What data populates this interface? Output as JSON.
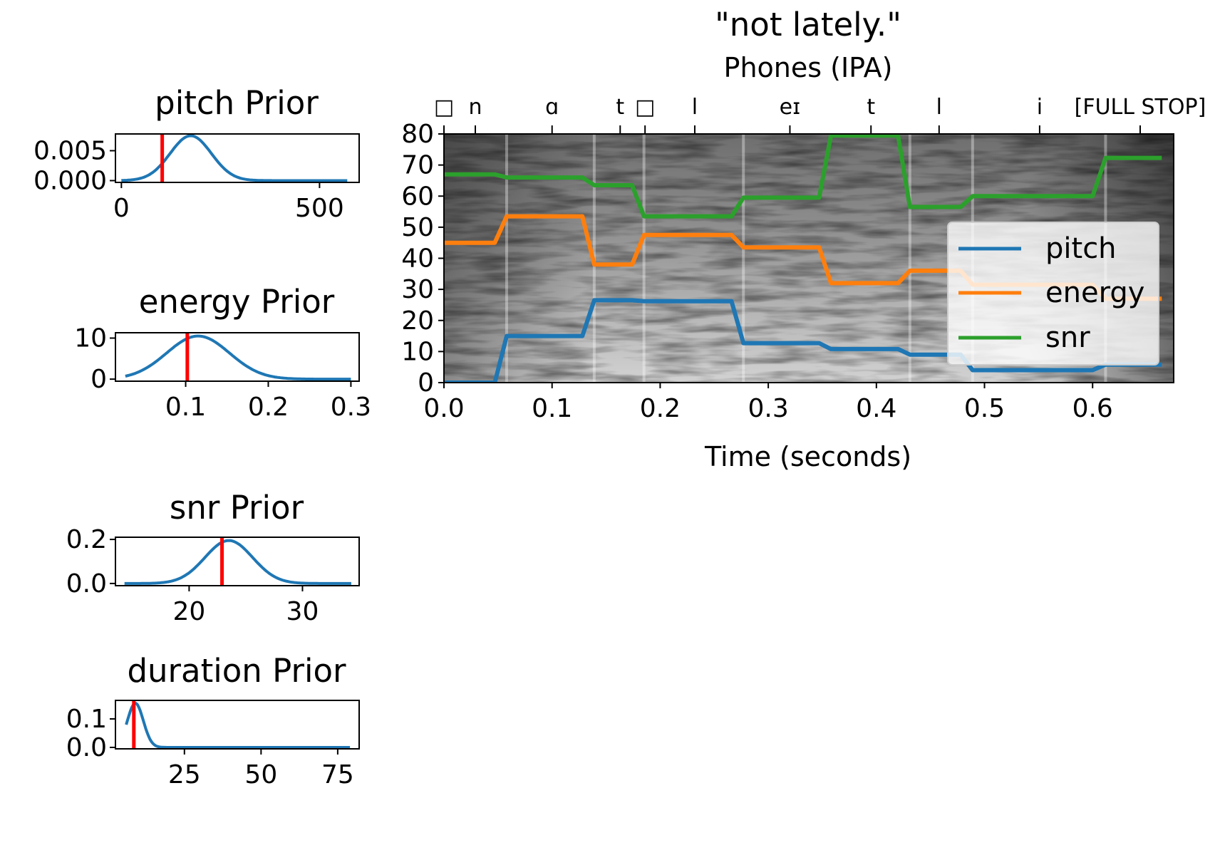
{
  "main": {
    "title": "\"not lately.\"",
    "xlabel": "Time (seconds)",
    "phones_label": "Phones (IPA)",
    "legend": [
      "pitch",
      "energy",
      "snr"
    ]
  },
  "priors": [
    {
      "title": "pitch Prior"
    },
    {
      "title": "energy Prior"
    },
    {
      "title": "snr Prior"
    },
    {
      "title": "duration Prior"
    }
  ],
  "colors": {
    "pitch": "#1f77b4",
    "energy": "#ff7f0e",
    "snr": "#2ca02c",
    "marker": "#ff0000"
  },
  "chart_data": [
    {
      "type": "line",
      "title": "\"not lately.\"",
      "xlabel": "Time (seconds)",
      "x2label": "Phones (IPA)",
      "background": "spectrogram (grayscale)",
      "xlim": [
        0,
        0.675
      ],
      "ylim": [
        0,
        80
      ],
      "xticks": [
        "0.0",
        "0.1",
        "0.2",
        "0.3",
        "0.4",
        "0.5",
        "0.6"
      ],
      "yticks": [
        "0",
        "10",
        "20",
        "30",
        "40",
        "50",
        "60",
        "70",
        "80"
      ],
      "phones": [
        {
          "label": "□",
          "time": 0.0
        },
        {
          "label": "n",
          "time": 0.029
        },
        {
          "label": "ɑ",
          "time": 0.1
        },
        {
          "label": "t",
          "time": 0.163
        },
        {
          "label": "□",
          "time": 0.186
        },
        {
          "label": "l",
          "time": 0.232
        },
        {
          "label": "eɪ",
          "time": 0.32
        },
        {
          "label": "t",
          "time": 0.395
        },
        {
          "label": "l",
          "time": 0.458
        },
        {
          "label": "i",
          "time": 0.551
        },
        {
          "label": "[FULL STOP]",
          "time": 0.644
        }
      ],
      "phone_boundaries": [
        0.058,
        0.139,
        0.185,
        0.277,
        0.431,
        0.489,
        0.612
      ],
      "legend_position": "center-right",
      "series": [
        {
          "name": "pitch",
          "points": [
            [
              0,
              0
            ],
            [
              0.047,
              0
            ],
            [
              0.058,
              15
            ],
            [
              0.128,
              15
            ],
            [
              0.139,
              26.5
            ],
            [
              0.174,
              26.5
            ],
            [
              0.185,
              26.2
            ],
            [
              0.266,
              26.2
            ],
            [
              0.277,
              12.7
            ],
            [
              0.347,
              12.7
            ],
            [
              0.358,
              10.8
            ],
            [
              0.42,
              10.8
            ],
            [
              0.431,
              9
            ],
            [
              0.478,
              9
            ],
            [
              0.489,
              4
            ],
            [
              0.6,
              4
            ],
            [
              0.612,
              5.8
            ],
            [
              0.664,
              5.8
            ]
          ]
        },
        {
          "name": "energy",
          "points": [
            [
              0,
              45
            ],
            [
              0.047,
              45
            ],
            [
              0.058,
              53.5
            ],
            [
              0.128,
              53.5
            ],
            [
              0.139,
              38
            ],
            [
              0.174,
              38
            ],
            [
              0.185,
              47.5
            ],
            [
              0.266,
              47.5
            ],
            [
              0.277,
              43.5
            ],
            [
              0.347,
              43.5
            ],
            [
              0.358,
              32
            ],
            [
              0.42,
              32
            ],
            [
              0.431,
              36
            ],
            [
              0.478,
              36
            ],
            [
              0.489,
              31.5
            ],
            [
              0.6,
              31.5
            ],
            [
              0.612,
              27
            ],
            [
              0.664,
              27
            ]
          ]
        },
        {
          "name": "snr",
          "points": [
            [
              0,
              67
            ],
            [
              0.047,
              67
            ],
            [
              0.058,
              66
            ],
            [
              0.128,
              66
            ],
            [
              0.139,
              63.5
            ],
            [
              0.174,
              63.5
            ],
            [
              0.185,
              53.5
            ],
            [
              0.266,
              53.5
            ],
            [
              0.277,
              59.5
            ],
            [
              0.347,
              59.5
            ],
            [
              0.358,
              79.5
            ],
            [
              0.42,
              79.5
            ],
            [
              0.431,
              56.5
            ],
            [
              0.478,
              56.5
            ],
            [
              0.489,
              60
            ],
            [
              0.6,
              60
            ],
            [
              0.612,
              72.3
            ],
            [
              0.664,
              72.3
            ]
          ]
        }
      ]
    },
    {
      "type": "line",
      "title": "pitch Prior",
      "xlim": [
        -15,
        600
      ],
      "ylim": [
        -0.0003,
        0.0078
      ],
      "xticks": [
        0,
        500
      ],
      "yticks": [
        0.0,
        0.005
      ],
      "xtick_labels": [
        "0",
        "500"
      ],
      "ytick_labels": [
        "0.000",
        "0.005"
      ],
      "distribution": {
        "kind": "gaussian",
        "mean": 175,
        "std": 52,
        "peak": 0.0075,
        "x_from": 0,
        "x_to": 570
      },
      "marker": 103
    },
    {
      "type": "line",
      "title": "energy Prior",
      "xlim": [
        0.015,
        0.31
      ],
      "ylim": [
        -0.5,
        11.3
      ],
      "xticks": [
        0.1,
        0.2,
        0.3
      ],
      "yticks": [
        0,
        10
      ],
      "xtick_labels": [
        "0.1",
        "0.2",
        "0.3"
      ],
      "ytick_labels": [
        "0",
        "10"
      ],
      "distribution": {
        "kind": "gaussian",
        "mean": 0.115,
        "std": 0.038,
        "peak": 10.5,
        "x_from": 0.027,
        "x_to": 0.3
      },
      "marker": 0.102
    },
    {
      "type": "line",
      "title": "snr Prior",
      "xlim": [
        13.5,
        35
      ],
      "ylim": [
        -0.01,
        0.21
      ],
      "xticks": [
        20,
        30
      ],
      "yticks": [
        0.0,
        0.2
      ],
      "xtick_labels": [
        "20",
        "30"
      ],
      "ytick_labels": [
        "0.0",
        "0.2"
      ],
      "distribution": {
        "kind": "gaussian",
        "mean": 23.5,
        "std": 2.1,
        "peak": 0.195,
        "x_from": 14.3,
        "x_to": 34.3
      },
      "marker": 22.9
    },
    {
      "type": "line",
      "title": "duration Prior",
      "xlim": [
        2.5,
        82
      ],
      "ylim": [
        -0.005,
        0.165
      ],
      "xticks": [
        25,
        50,
        75
      ],
      "yticks": [
        0.0,
        0.1
      ],
      "xtick_labels": [
        "25",
        "50",
        "75"
      ],
      "ytick_labels": [
        "0.0",
        "0.1"
      ],
      "distribution": {
        "kind": "gaussian",
        "mean": 9,
        "std": 2.6,
        "peak": 0.155,
        "x_from": 6,
        "x_to": 79
      },
      "marker": 8.5
    }
  ]
}
